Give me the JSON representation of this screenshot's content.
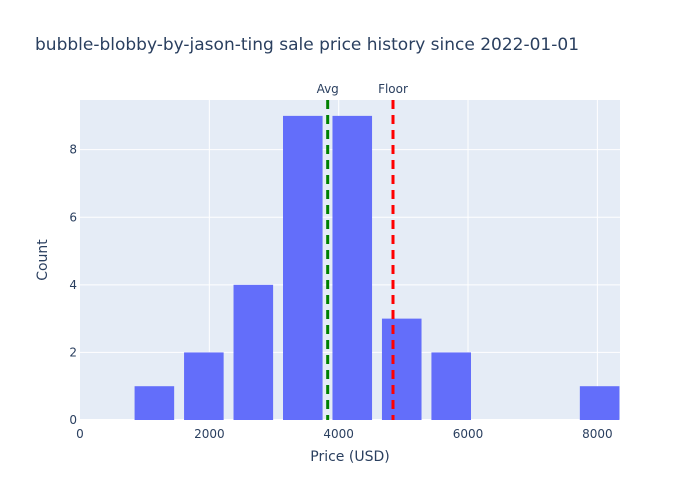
{
  "chart_data": {
    "type": "bar",
    "title": "bubble-blobby-by-jason-ting sale price history since 2022-01-01",
    "xlabel": "Price (USD)",
    "ylabel": "Count",
    "xlim": [
      0,
      8350
    ],
    "ylim": [
      0,
      9.47
    ],
    "x_ticks": [
      0,
      2000,
      4000,
      6000,
      8000
    ],
    "y_ticks": [
      0,
      2,
      4,
      6,
      8
    ],
    "bar_width": 765,
    "bins": [
      {
        "x": 1150,
        "count": 1
      },
      {
        "x": 1915,
        "count": 2
      },
      {
        "x": 2680,
        "count": 4
      },
      {
        "x": 3445,
        "count": 9
      },
      {
        "x": 4210,
        "count": 9
      },
      {
        "x": 4975,
        "count": 3
      },
      {
        "x": 5740,
        "count": 2
      },
      {
        "x": 6505,
        "count": 0
      },
      {
        "x": 7270,
        "count": 0
      },
      {
        "x": 8035,
        "count": 1
      }
    ],
    "bar_color": "#636efa",
    "background_color": "#e5ecf6",
    "grid": true,
    "reference_lines": [
      {
        "label": "Avg",
        "x": 3830,
        "color": "#008000"
      },
      {
        "label": "Floor",
        "x": 4840,
        "color": "#ff0000"
      }
    ]
  }
}
